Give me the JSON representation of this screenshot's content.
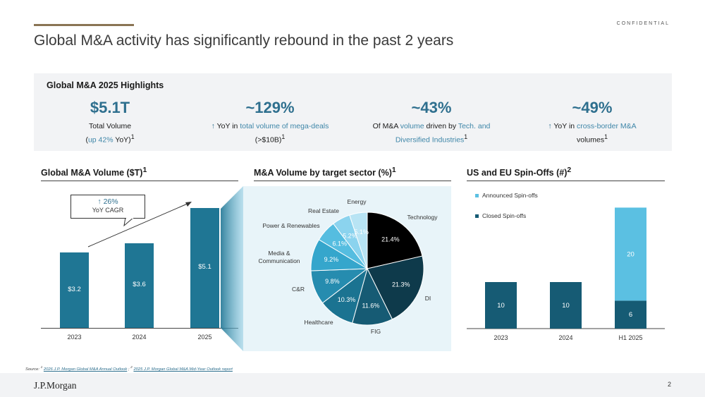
{
  "header": {
    "confidential": "CONFIDENTIAL",
    "title": "Global M&A activity has significantly rebound in the past 2 years"
  },
  "highlights": {
    "title": "Global M&A 2025 Highlights",
    "metrics": [
      {
        "value": "$5.1T",
        "pre": "Total Volume",
        "accent": "up 42%",
        "post": "YoY)",
        "open": "(",
        "sup": "1"
      },
      {
        "value": "~129%",
        "arrow": "↑",
        "pre": "YoY in",
        "accent": "total volume of mega-deals",
        "post": "(>$10B)",
        "sup": "1"
      },
      {
        "value": "~43%",
        "pre": "Of M&A",
        "accent": "volume",
        "mid": "driven by",
        "accent2": "Tech. and Diversified Industries",
        "sup": "1"
      },
      {
        "value": "~49%",
        "arrow": "↑",
        "pre": "YoY in",
        "accent": "cross-border M&A",
        "post": "volumes",
        "sup": "1"
      }
    ]
  },
  "sections": {
    "volume_title": "Global M&A Volume ($T)",
    "volume_sup": "1",
    "sector_title": "M&A Volume by target sector (%)",
    "sector_sup": "1",
    "spinoff_title": "US and EU Spin-Offs (#)",
    "spinoff_sup": "2"
  },
  "callout": {
    "arrow": "↑",
    "pct": "26%",
    "label": "YoY CAGR"
  },
  "chart_data": [
    {
      "type": "bar",
      "title": "Global M&A Volume ($T)",
      "categories": [
        "2023",
        "2024",
        "2025"
      ],
      "values": [
        3.2,
        3.6,
        5.1
      ],
      "value_labels": [
        "$3.2",
        "$3.6",
        "$5.1"
      ],
      "color": "#1f7694"
    },
    {
      "type": "pie",
      "title": "M&A Volume by target sector (%)",
      "slices": [
        {
          "label": "Technology",
          "value": 21.4,
          "value_label": "21.4%",
          "color": "#000000"
        },
        {
          "label": "DI",
          "value": 21.3,
          "value_label": "21.3%",
          "color": "#0e3a4b"
        },
        {
          "label": "FIG",
          "value": 11.6,
          "value_label": "11.6%",
          "color": "#165b74"
        },
        {
          "label": "Healthcare",
          "value": 10.3,
          "value_label": "10.3%",
          "color": "#1b7391"
        },
        {
          "label": "C&R",
          "value": 9.8,
          "value_label": "9.8%",
          "color": "#268caf"
        },
        {
          "label": "Media & Communication",
          "value": 9.2,
          "value_label": "9.2%",
          "color": "#35a6cc"
        },
        {
          "label": "Power & Renewables",
          "value": 6.1,
          "value_label": "6.1%",
          "color": "#55bde0"
        },
        {
          "label": "Real Estate",
          "value": 5.2,
          "value_label": "5.2%",
          "color": "#8bd3ee"
        },
        {
          "label": "Energy",
          "value": 5.1,
          "value_label": "5.1%",
          "color": "#b8e4f4"
        }
      ]
    },
    {
      "type": "bar",
      "stacked": true,
      "title": "US and EU Spin-Offs (#)",
      "categories": [
        "2023",
        "2024",
        "H1 2025"
      ],
      "series": [
        {
          "name": "Closed Spin-offs",
          "values": [
            10,
            10,
            6
          ],
          "color": "#165b74"
        },
        {
          "name": "Announced Spin-offs",
          "values": [
            0,
            0,
            20
          ],
          "color": "#5bc0e2"
        }
      ],
      "legend": "top-left"
    }
  ],
  "footer": {
    "source_prefix": "Source: ",
    "source1": "2026 J.P. Morgan Global M&A Annual Outlook",
    "source_sep": " ; ",
    "source2": "2025 J.P. Morgan Global M&A Mid-Year Outlook report",
    "logo": "J.P.Morgan",
    "page": "2"
  }
}
